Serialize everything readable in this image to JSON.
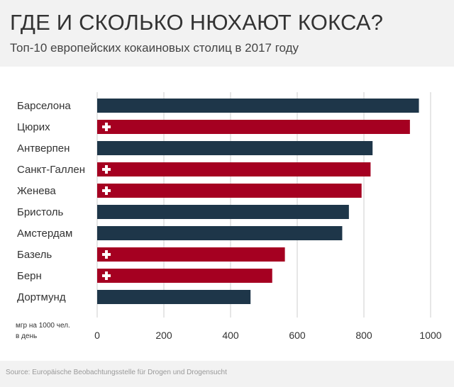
{
  "title": "ГДЕ И СКОЛЬКО НЮХАЮТ КОКСА?",
  "subtitle": "Топ-10 европейских кокаиновых столиц в 2017 году",
  "source": "Source: Europäische Beobachtungsstelle für Drogen und Drogensucht",
  "colors": {
    "default_bar": "#1e3649",
    "swiss_bar": "#a50021",
    "grid": "#cccccc",
    "header_bg": "#f2f2f2"
  },
  "chart_data": {
    "type": "bar",
    "orientation": "horizontal",
    "title": "ГДЕ И СКОЛЬКО НЮХАЮТ КОКСА?",
    "subtitle": "Топ-10 европейских кокаиновых столиц в 2017 году",
    "unit_label": [
      "мгр на 1000 чел.",
      "в день"
    ],
    "categories": [
      "Барселона",
      "Цюрих",
      "Антверпен",
      "Санкт-Галлен",
      "Женева",
      "Бристоль",
      "Амстердам",
      "Базель",
      "Берн",
      "Дортмунд"
    ],
    "values": [
      965,
      938,
      826,
      820,
      793,
      755,
      735,
      563,
      525,
      460
    ],
    "swiss": [
      false,
      true,
      false,
      true,
      true,
      false,
      false,
      true,
      true,
      false
    ],
    "xlim": [
      0,
      1000
    ],
    "xticks": [
      0,
      200,
      400,
      600,
      800,
      1000
    ],
    "grid": true,
    "marker_icon": "swiss-cross-icon"
  }
}
